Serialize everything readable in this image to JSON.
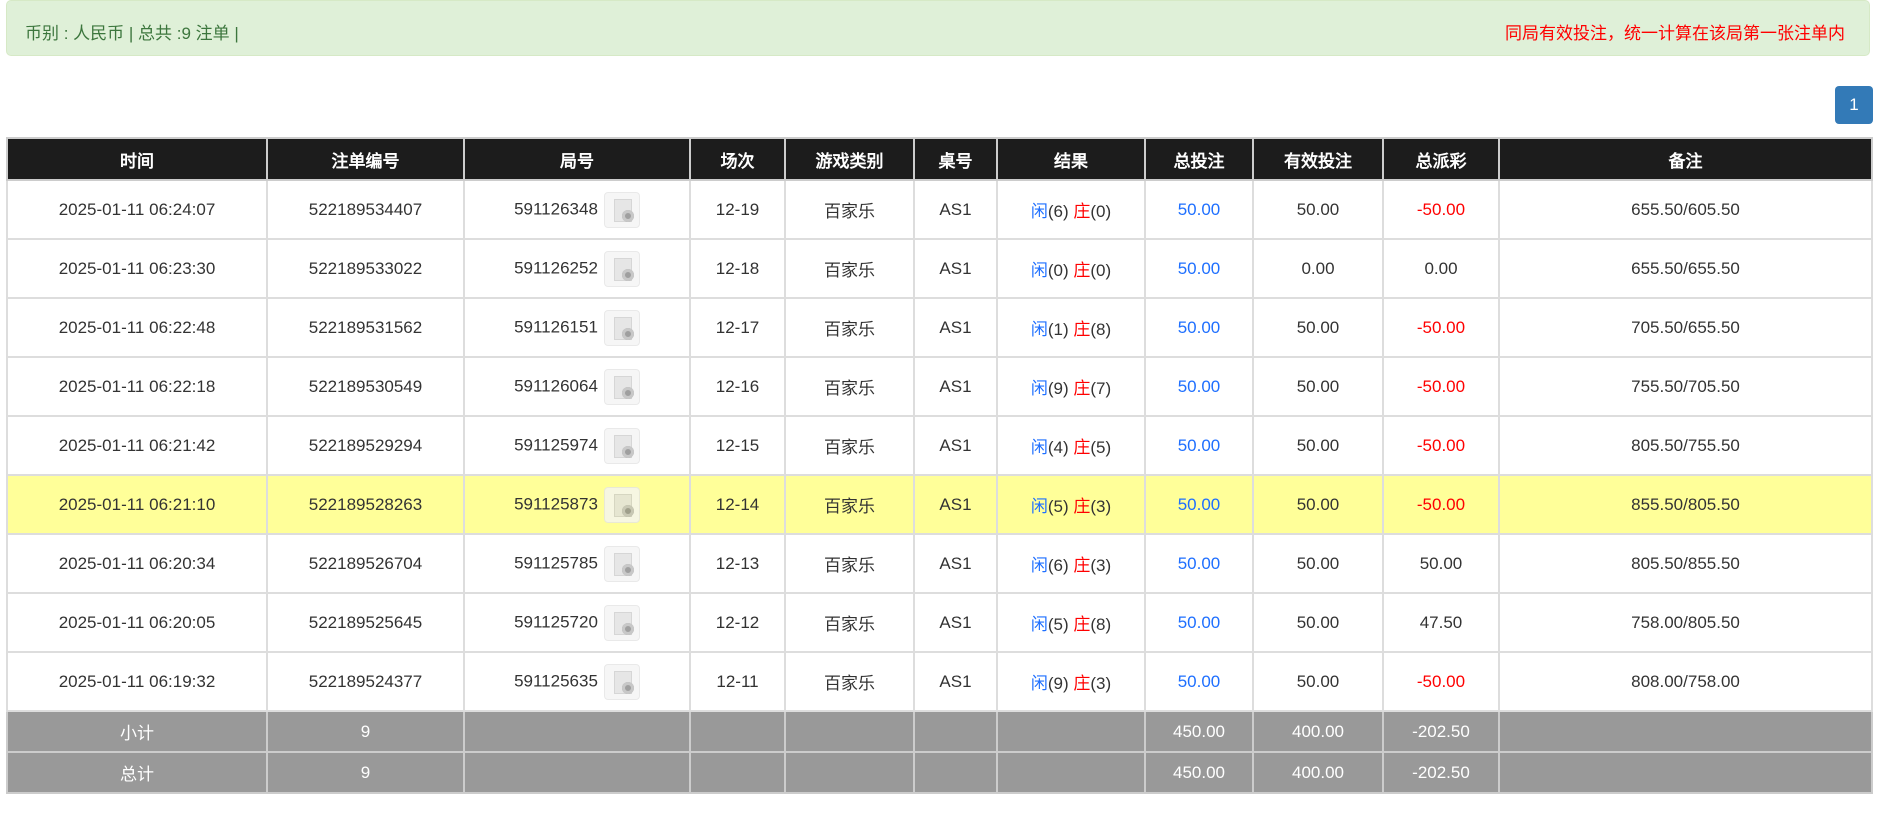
{
  "alert": {
    "summary": "币别 : 人民币 | 总共 :9 注单 |",
    "notice": "同局有效投注，统一计算在该局第一张注单内"
  },
  "pagination": {
    "current": "1"
  },
  "colors": {
    "player": "#1e6fff",
    "banker": "#ff0000",
    "negative": "#ff0000",
    "highlight": "#ffff99",
    "header": "#1c1c1c",
    "summary": "#999999"
  },
  "table": {
    "headers": [
      "时间",
      "注单编号",
      "局号",
      "场次",
      "游戏类别",
      "桌号",
      "结果",
      "总投注",
      "有效投注",
      "总派彩",
      "备注"
    ],
    "rows": [
      {
        "time": "2025-01-11 06:24:07",
        "bet_id": "522189534407",
        "round": "591126348",
        "shoe": "12-19",
        "game": "百家乐",
        "table": "AS1",
        "player_label": "闲",
        "player": "(6)",
        "banker_label": "庄",
        "banker": "(0)",
        "total_bet": "50.00",
        "valid_bet": "50.00",
        "payout": "-50.00",
        "payout_negative": true,
        "note": "655.50/605.50"
      },
      {
        "time": "2025-01-11 06:23:30",
        "bet_id": "522189533022",
        "round": "591126252",
        "shoe": "12-18",
        "game": "百家乐",
        "table": "AS1",
        "player_label": "闲",
        "player": "(0)",
        "banker_label": "庄",
        "banker": "(0)",
        "total_bet": "50.00",
        "valid_bet": "0.00",
        "payout": "0.00",
        "payout_negative": false,
        "note": "655.50/655.50"
      },
      {
        "time": "2025-01-11 06:22:48",
        "bet_id": "522189531562",
        "round": "591126151",
        "shoe": "12-17",
        "game": "百家乐",
        "table": "AS1",
        "player_label": "闲",
        "player": "(1)",
        "banker_label": "庄",
        "banker": "(8)",
        "total_bet": "50.00",
        "valid_bet": "50.00",
        "payout": "-50.00",
        "payout_negative": true,
        "note": "705.50/655.50"
      },
      {
        "time": "2025-01-11 06:22:18",
        "bet_id": "522189530549",
        "round": "591126064",
        "shoe": "12-16",
        "game": "百家乐",
        "table": "AS1",
        "player_label": "闲",
        "player": "(9)",
        "banker_label": "庄",
        "banker": "(7)",
        "total_bet": "50.00",
        "valid_bet": "50.00",
        "payout": "-50.00",
        "payout_negative": true,
        "note": "755.50/705.50"
      },
      {
        "time": "2025-01-11 06:21:42",
        "bet_id": "522189529294",
        "round": "591125974",
        "shoe": "12-15",
        "game": "百家乐",
        "table": "AS1",
        "player_label": "闲",
        "player": "(4)",
        "banker_label": "庄",
        "banker": "(5)",
        "total_bet": "50.00",
        "valid_bet": "50.00",
        "payout": "-50.00",
        "payout_negative": true,
        "note": "805.50/755.50"
      },
      {
        "time": "2025-01-11 06:21:10",
        "bet_id": "522189528263",
        "round": "591125873",
        "shoe": "12-14",
        "game": "百家乐",
        "table": "AS1",
        "player_label": "闲",
        "player": "(5)",
        "banker_label": "庄",
        "banker": "(3)",
        "total_bet": "50.00",
        "valid_bet": "50.00",
        "payout": "-50.00",
        "payout_negative": true,
        "note": "855.50/805.50",
        "highlighted": true
      },
      {
        "time": "2025-01-11 06:20:34",
        "bet_id": "522189526704",
        "round": "591125785",
        "shoe": "12-13",
        "game": "百家乐",
        "table": "AS1",
        "player_label": "闲",
        "player": "(6)",
        "banker_label": "庄",
        "banker": "(3)",
        "total_bet": "50.00",
        "valid_bet": "50.00",
        "payout": "50.00",
        "payout_negative": false,
        "note": "805.50/855.50"
      },
      {
        "time": "2025-01-11 06:20:05",
        "bet_id": "522189525645",
        "round": "591125720",
        "shoe": "12-12",
        "game": "百家乐",
        "table": "AS1",
        "player_label": "闲",
        "player": "(5)",
        "banker_label": "庄",
        "banker": "(8)",
        "total_bet": "50.00",
        "valid_bet": "50.00",
        "payout": "47.50",
        "payout_negative": false,
        "note": "758.00/805.50"
      },
      {
        "time": "2025-01-11 06:19:32",
        "bet_id": "522189524377",
        "round": "591125635",
        "shoe": "12-11",
        "game": "百家乐",
        "table": "AS1",
        "player_label": "闲",
        "player": "(9)",
        "banker_label": "庄",
        "banker": "(3)",
        "total_bet": "50.00",
        "valid_bet": "50.00",
        "payout": "-50.00",
        "payout_negative": true,
        "note": "808.00/758.00"
      }
    ],
    "summaries": [
      {
        "label": "小计",
        "count": "9",
        "total_bet": "450.00",
        "valid_bet": "400.00",
        "payout": "-202.50"
      },
      {
        "label": "总计",
        "count": "9",
        "total_bet": "450.00",
        "valid_bet": "400.00",
        "payout": "-202.50"
      }
    ]
  }
}
